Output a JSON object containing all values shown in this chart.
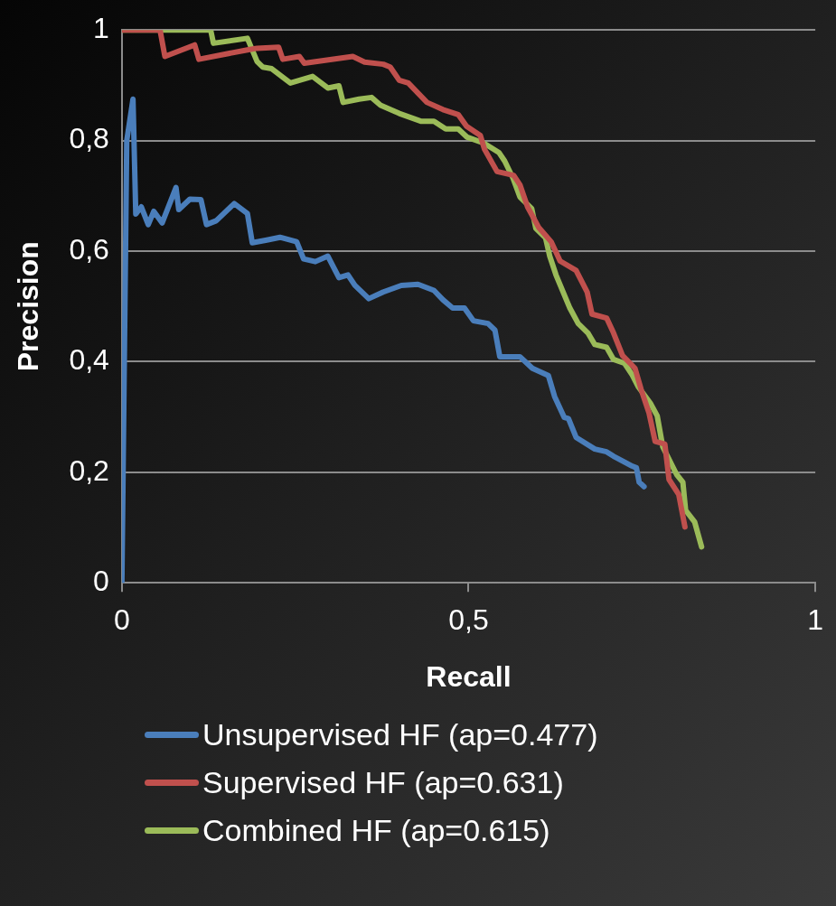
{
  "chart_data": {
    "type": "line",
    "xlabel": "Recall",
    "ylabel": "Precision",
    "xlim": [
      0,
      1
    ],
    "xticks": [
      0,
      {
        "value": 0.5,
        "label": "0,5"
      },
      1
    ],
    "ylim": [
      0,
      1
    ],
    "yticks": [
      0,
      {
        "value": 0.2,
        "label": "0,2"
      },
      {
        "value": 0.4,
        "label": "0,4"
      },
      {
        "value": 0.6,
        "label": "0,6"
      },
      {
        "value": 0.8,
        "label": "0,8"
      },
      1
    ],
    "grid": "y",
    "legend": "bottom",
    "marker": "none",
    "line_style": "solid",
    "series": [
      {
        "name": "Unsupervised HF (ap=0.477)",
        "color": "#4a7ebb",
        "x": [
          0,
          0.007,
          0.016,
          0.02,
          0.028,
          0.038,
          0.046,
          0.058,
          0.078,
          0.082,
          0.098,
          0.114,
          0.122,
          0.136,
          0.162,
          0.181,
          0.188,
          0.209,
          0.228,
          0.252,
          0.262,
          0.279,
          0.297,
          0.313,
          0.326,
          0.336,
          0.356,
          0.377,
          0.403,
          0.427,
          0.45,
          0.463,
          0.477,
          0.494,
          0.507,
          0.528,
          0.538,
          0.545,
          0.574,
          0.592,
          0.615,
          0.624,
          0.638,
          0.644,
          0.655,
          0.682,
          0.699,
          0.709,
          0.736,
          0.742,
          0.746,
          0.753
        ],
        "values": [
          0,
          0.8,
          0.875,
          0.667,
          0.68,
          0.648,
          0.672,
          0.651,
          0.715,
          0.675,
          0.694,
          0.693,
          0.648,
          0.655,
          0.686,
          0.668,
          0.615,
          0.62,
          0.625,
          0.617,
          0.586,
          0.581,
          0.591,
          0.552,
          0.557,
          0.538,
          0.514,
          0.526,
          0.538,
          0.54,
          0.529,
          0.512,
          0.497,
          0.497,
          0.474,
          0.469,
          0.457,
          0.409,
          0.409,
          0.388,
          0.375,
          0.337,
          0.299,
          0.297,
          0.263,
          0.242,
          0.237,
          0.229,
          0.211,
          0.208,
          0.182,
          0.174
        ]
      },
      {
        "name": "Supervised HF (ap=0.631)",
        "color": "#c0504d",
        "x": [
          0,
          0.055,
          0.062,
          0.105,
          0.111,
          0.181,
          0.195,
          0.226,
          0.232,
          0.256,
          0.263,
          0.333,
          0.35,
          0.377,
          0.387,
          0.4,
          0.413,
          0.44,
          0.463,
          0.485,
          0.497,
          0.517,
          0.523,
          0.541,
          0.565,
          0.574,
          0.585,
          0.601,
          0.619,
          0.632,
          0.655,
          0.671,
          0.678,
          0.699,
          0.709,
          0.722,
          0.74,
          0.749,
          0.76,
          0.769,
          0.783,
          0.789,
          0.803,
          0.812
        ],
        "values": [
          1,
          1,
          0.952,
          0.973,
          0.947,
          0.964,
          0.967,
          0.969,
          0.947,
          0.952,
          0.94,
          0.952,
          0.942,
          0.938,
          0.933,
          0.909,
          0.904,
          0.869,
          0.856,
          0.847,
          0.826,
          0.809,
          0.784,
          0.744,
          0.737,
          0.72,
          0.68,
          0.643,
          0.617,
          0.582,
          0.565,
          0.526,
          0.486,
          0.479,
          0.452,
          0.411,
          0.388,
          0.349,
          0.308,
          0.256,
          0.251,
          0.187,
          0.16,
          0.101
        ]
      },
      {
        "name": "Combined HF (ap=0.615)",
        "color": "#9bbb59",
        "x": [
          0,
          0.128,
          0.132,
          0.181,
          0.195,
          0.203,
          0.216,
          0.243,
          0.275,
          0.297,
          0.313,
          0.319,
          0.342,
          0.36,
          0.373,
          0.4,
          0.431,
          0.45,
          0.467,
          0.485,
          0.498,
          0.521,
          0.544,
          0.552,
          0.564,
          0.574,
          0.591,
          0.597,
          0.611,
          0.617,
          0.626,
          0.646,
          0.658,
          0.672,
          0.682,
          0.699,
          0.709,
          0.725,
          0.736,
          0.745,
          0.762,
          0.772,
          0.78,
          0.792,
          0.8,
          0.809,
          0.813,
          0.826,
          0.836
        ],
        "values": [
          1,
          1,
          0.976,
          0.985,
          0.943,
          0.933,
          0.93,
          0.904,
          0.916,
          0.895,
          0.899,
          0.869,
          0.875,
          0.878,
          0.864,
          0.849,
          0.835,
          0.835,
          0.821,
          0.821,
          0.806,
          0.796,
          0.778,
          0.763,
          0.732,
          0.698,
          0.677,
          0.641,
          0.624,
          0.591,
          0.557,
          0.497,
          0.469,
          0.452,
          0.431,
          0.426,
          0.404,
          0.397,
          0.376,
          0.354,
          0.325,
          0.302,
          0.246,
          0.216,
          0.196,
          0.182,
          0.131,
          0.11,
          0.065
        ]
      }
    ]
  }
}
